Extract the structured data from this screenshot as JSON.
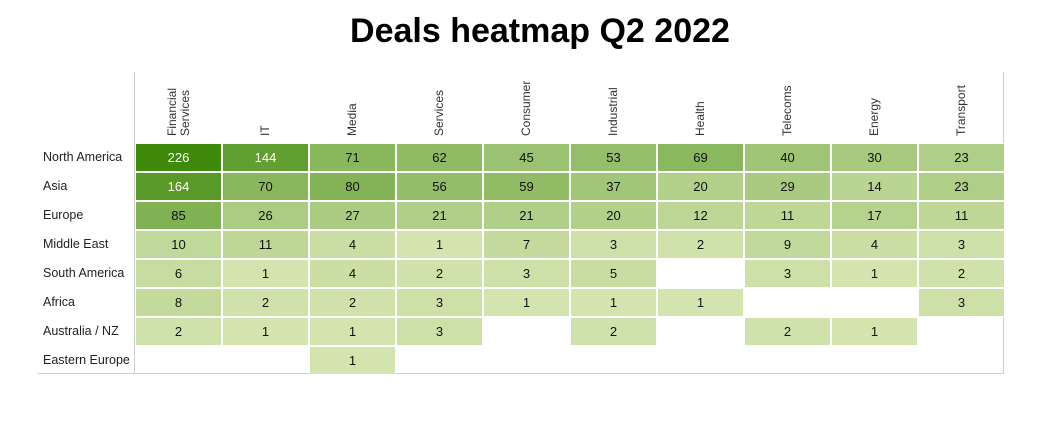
{
  "chart_data": {
    "type": "heatmap",
    "title": "Deals heatmap Q2 2022",
    "columns": [
      "Financial Services",
      "IT",
      "Media",
      "Services",
      "Consumer",
      "Industrial",
      "Health",
      "Telecoms",
      "Energy",
      "Transport"
    ],
    "rows": [
      "North America",
      "Asia",
      "Europe",
      "Middle East",
      "South America",
      "Africa",
      "Australia / NZ",
      "Eastern Europe"
    ],
    "values": [
      [
        226,
        144,
        71,
        62,
        45,
        53,
        69,
        40,
        30,
        23
      ],
      [
        164,
        70,
        80,
        56,
        59,
        37,
        20,
        29,
        14,
        23
      ],
      [
        85,
        26,
        27,
        21,
        21,
        20,
        12,
        11,
        17,
        11
      ],
      [
        10,
        11,
        4,
        1,
        7,
        3,
        2,
        9,
        4,
        3
      ],
      [
        6,
        1,
        4,
        2,
        3,
        5,
        null,
        3,
        1,
        2
      ],
      [
        8,
        2,
        2,
        3,
        1,
        1,
        1,
        null,
        null,
        3
      ],
      [
        2,
        1,
        1,
        3,
        null,
        2,
        null,
        2,
        1,
        null
      ],
      [
        null,
        null,
        1,
        null,
        null,
        null,
        null,
        null,
        null,
        null
      ]
    ],
    "colors": {
      "min": "#dce9b8",
      "max": "#3f8a0b",
      "empty": "#ffffff"
    }
  }
}
